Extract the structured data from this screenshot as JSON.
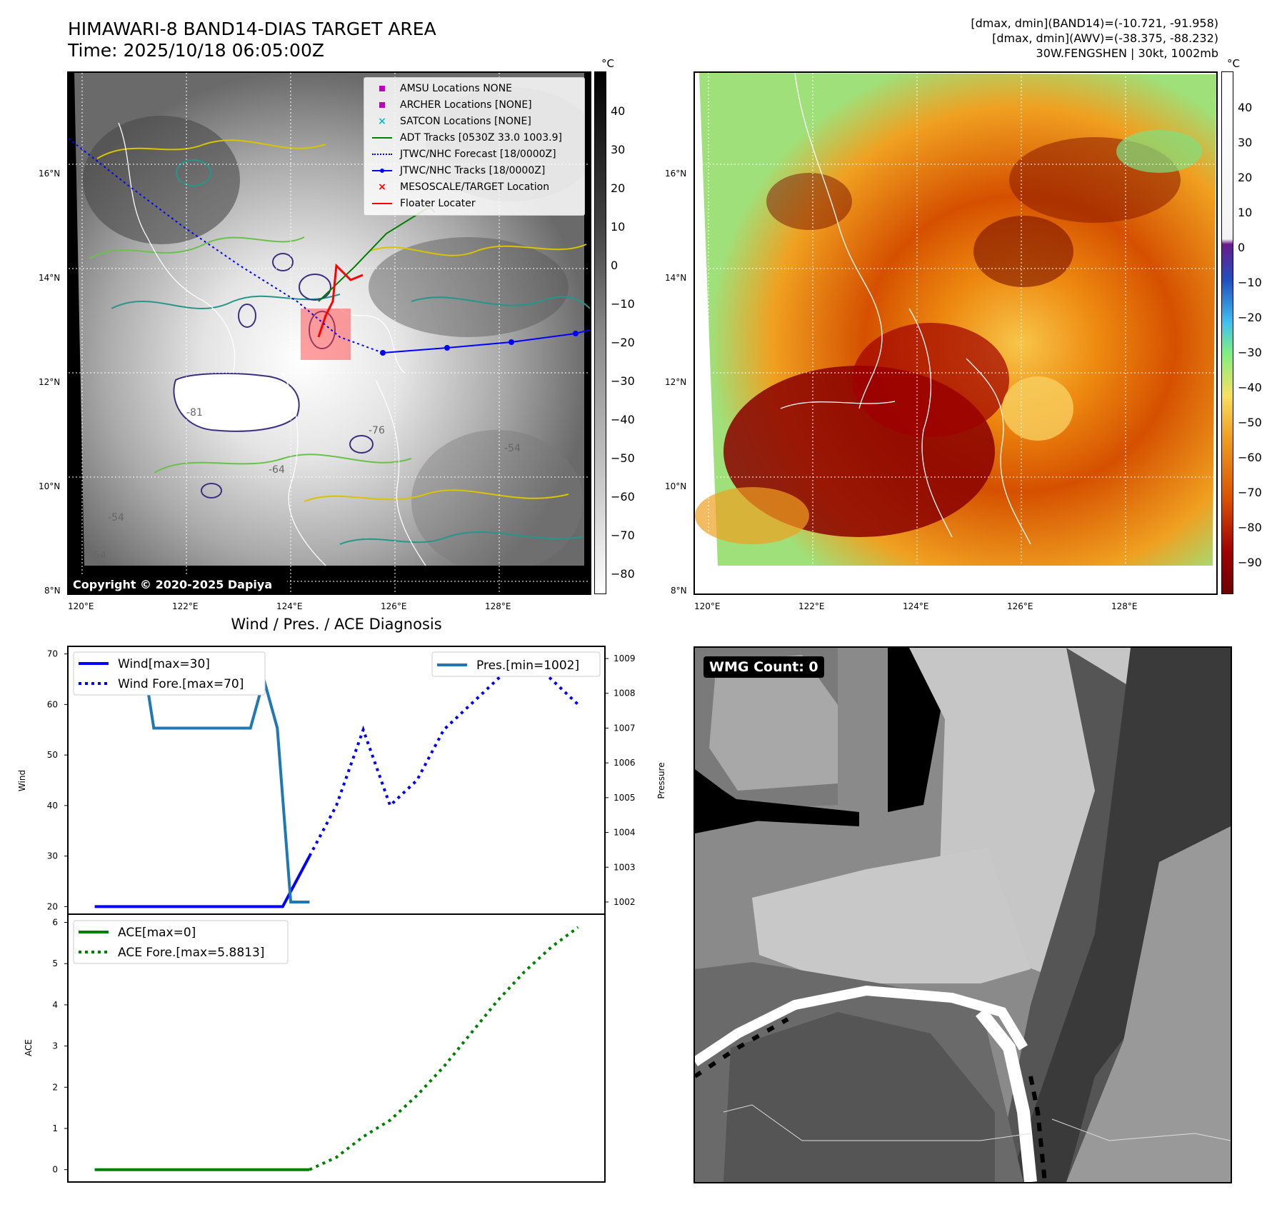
{
  "header": {
    "title_line1": "HIMAWARI-8 BAND14-DIAS TARGET AREA",
    "title_line2": "Time: 2025/10/18 06:05:00Z",
    "info_line1": "[dmax, dmin](BAND14)=(-10.721, -91.958)",
    "info_line2": "[dmax, dmin](AWV)=(-38.375, -88.232)",
    "info_line3": "30W.FENGSHEN | 30kt, 1002mb"
  },
  "map_left": {
    "lat_labels": [
      "16°N",
      "14°N",
      "12°N",
      "10°N",
      "8°N"
    ],
    "lon_labels": [
      "120°E",
      "122°E",
      "124°E",
      "126°E",
      "128°E"
    ],
    "copyright": "Copyright © 2020-2025 Dapiya",
    "colorbar_unit": "°C",
    "colorbar_ticks": [
      "40",
      "30",
      "20",
      "10",
      "0",
      "−10",
      "−20",
      "−30",
      "−40",
      "−50",
      "−60",
      "−70",
      "−80"
    ],
    "legend": [
      {
        "label": "AMSU Locations NONE",
        "marker": "square",
        "color": "#c000c0"
      },
      {
        "label": "ARCHER Locations [NONE]",
        "marker": "square",
        "color": "#c000c0"
      },
      {
        "label": "SATCON Locations [NONE]",
        "marker": "x",
        "color": "#00c0c0"
      },
      {
        "label": "ADT Tracks [0530Z 33.0 1003.9]",
        "marker": "line",
        "color": "#008000"
      },
      {
        "label": "JTWC/NHC Forecast [18/0000Z]",
        "marker": "dotted",
        "color": "#0000ff"
      },
      {
        "label": "JTWC/NHC Tracks [18/0000Z]",
        "marker": "line-dot",
        "color": "#0000ff"
      },
      {
        "label": "MESOSCALE/TARGET Location",
        "marker": "x",
        "color": "#ff0000"
      },
      {
        "label": "Floater Locater",
        "marker": "line",
        "color": "#ff0000"
      }
    ],
    "contour_labels": [
      "-54",
      "-64",
      "-76",
      "-81",
      "-54",
      "-54"
    ]
  },
  "map_right": {
    "lat_labels": [
      "16°N",
      "14°N",
      "12°N",
      "10°N",
      "8°N"
    ],
    "lon_labels": [
      "120°E",
      "122°E",
      "124°E",
      "126°E",
      "128°E"
    ],
    "colorbar_unit": "°C",
    "colorbar_ticks": [
      "40",
      "30",
      "20",
      "10",
      "0",
      "−10",
      "−20",
      "−30",
      "−40",
      "−50",
      "−60",
      "−70",
      "−80",
      "−90"
    ]
  },
  "wmg": {
    "label": "WMG Count: 0"
  },
  "diagnosis_title": "Wind / Pres. / ACE Diagnosis",
  "chart_data": [
    {
      "type": "line",
      "title": "Wind / Pres. / ACE Diagnosis",
      "ylabel": "Wind",
      "y2label": "Pressure",
      "ylim": [
        18.5,
        71.5
      ],
      "y2lim": [
        1001.65,
        1009.35
      ],
      "yticks": [
        20,
        30,
        40,
        50,
        60,
        70
      ],
      "y2ticks": [
        1002,
        1003,
        1004,
        1005,
        1006,
        1007,
        1008,
        1009
      ],
      "xlim": [
        0,
        20
      ],
      "legend_left": [
        "Wind[max=30]",
        "Wind Fore.[max=70]"
      ],
      "legend_right": [
        "Pres.[min=1002]"
      ],
      "series": [
        {
          "name": "Wind[max=30]",
          "axis": "left",
          "color": "#0000ff",
          "style": "solid",
          "x": [
            1,
            8,
            9
          ],
          "y": [
            20,
            20,
            30
          ]
        },
        {
          "name": "Wind Fore.[max=70]",
          "axis": "left",
          "color": "#0000ff",
          "style": "dotted",
          "x": [
            9,
            10,
            11,
            12,
            13,
            14,
            15,
            16,
            17,
            18,
            19
          ],
          "y": [
            30,
            40,
            55,
            40,
            45,
            55,
            60,
            65,
            70,
            65,
            60
          ]
        },
        {
          "name": "Pres.[min=1002]",
          "axis": "right",
          "color": "#1f77b4",
          "style": "solid",
          "x": [
            1,
            2.8,
            3.2,
            6.8,
            7.3,
            7.8,
            8.3,
            8.8,
            9
          ],
          "y": [
            1009,
            1009,
            1007,
            1007,
            1008.4,
            1007,
            1002,
            1002,
            1002
          ]
        }
      ]
    },
    {
      "type": "line",
      "ylabel": "ACE",
      "ylim": [
        -0.3,
        6.2
      ],
      "yticks": [
        0,
        1,
        2,
        3,
        4,
        5,
        6
      ],
      "xlim": [
        0,
        20
      ],
      "legend": [
        "ACE[max=0]",
        "ACE Fore.[max=5.8813]"
      ],
      "series": [
        {
          "name": "ACE[max=0]",
          "color": "#008000",
          "style": "solid",
          "x": [
            1,
            9
          ],
          "y": [
            0,
            0
          ]
        },
        {
          "name": "ACE Fore.[max=5.8813]",
          "color": "#008000",
          "style": "dotted",
          "x": [
            9,
            10,
            11,
            12,
            13,
            14,
            15,
            16,
            17,
            18,
            19
          ],
          "y": [
            0,
            0.3,
            0.8,
            1.2,
            1.8,
            2.5,
            3.3,
            4.1,
            4.8,
            5.4,
            5.8813
          ]
        }
      ]
    }
  ]
}
